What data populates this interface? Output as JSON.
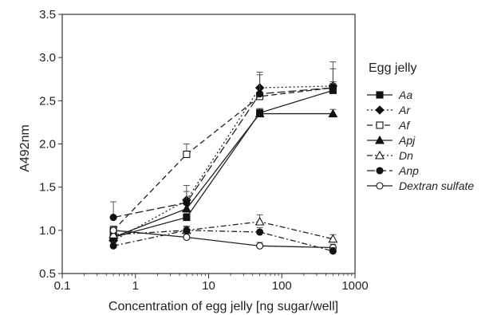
{
  "chart_data": {
    "type": "line",
    "xlabel": "Concentration of egg jelly [ng sugar/well]",
    "ylabel": "A492nm",
    "xscale": "log",
    "xlim": [
      0.1,
      1000
    ],
    "ylim": [
      0.5,
      3.5
    ],
    "x_ticks": [
      "0.1",
      "1",
      "10",
      "100",
      "1000"
    ],
    "y_ticks": [
      "0.5",
      "1.0",
      "1.5",
      "2.0",
      "2.5",
      "3.0",
      "3.5"
    ],
    "grid": false,
    "legend_title": "Egg jelly",
    "legend_position": "right",
    "x": [
      0.5,
      5,
      50,
      500
    ],
    "series": [
      {
        "name": "Aa",
        "marker": "filled-square",
        "dash": "solid",
        "values": [
          0.92,
          1.15,
          2.36,
          2.62
        ],
        "errors": [
          0.05,
          0.05,
          0.05,
          0.25
        ]
      },
      {
        "name": "Ar",
        "marker": "filled-diamond",
        "dash": "dotted",
        "values": [
          0.88,
          1.35,
          2.65,
          2.67
        ],
        "errors": [
          0.05,
          0.1,
          0.15,
          0.05
        ]
      },
      {
        "name": "Af",
        "marker": "open-square",
        "dash": "dashed",
        "values": [
          1.0,
          1.88,
          2.55,
          2.65
        ],
        "errors": [
          0.05,
          0.12,
          0.05,
          0.05
        ]
      },
      {
        "name": "Apj",
        "marker": "filled-triangle",
        "dash": "solid",
        "values": [
          0.92,
          1.25,
          2.35,
          2.35
        ],
        "errors": [
          0.05,
          0.05,
          0.05,
          0.05
        ]
      },
      {
        "name": "Dn",
        "marker": "open-triangle",
        "dash": "dash-dot",
        "values": [
          0.95,
          1.0,
          1.1,
          0.9
        ],
        "errors": [
          0.05,
          0.05,
          0.08,
          0.05
        ]
      },
      {
        "name": "Anp",
        "marker": "filled-circle",
        "dash": "long-dash",
        "values": [
          1.15,
          1.32,
          2.58,
          2.65
        ],
        "errors": [
          0.18,
          0.2,
          0.25,
          0.3
        ]
      },
      {
        "name": "Dextran sulfate",
        "marker": "open-circle",
        "dash": "solid",
        "values": [
          1.0,
          0.92,
          0.82,
          0.8
        ],
        "errors": [
          0.05,
          0.04,
          0.04,
          0.04
        ]
      },
      {
        "name": "",
        "marker": "filled-circle",
        "dash": "dash-dot",
        "values": [
          0.82,
          1.0,
          0.98,
          0.76
        ],
        "errors": [
          0.04,
          0.04,
          0.05,
          0.04
        ]
      }
    ]
  }
}
